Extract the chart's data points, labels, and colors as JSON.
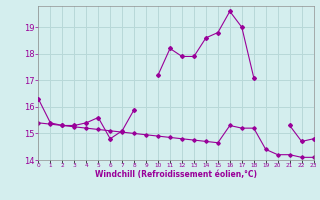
{
  "title": "",
  "xlabel": "Windchill (Refroidissement éolien,°C)",
  "background_color": "#d4eeee",
  "grid_color": "#b8d8d8",
  "line_color": "#990099",
  "x_hours": [
    0,
    1,
    2,
    3,
    4,
    5,
    6,
    7,
    8,
    9,
    10,
    11,
    12,
    13,
    14,
    15,
    16,
    17,
    18,
    19,
    20,
    21,
    22,
    23
  ],
  "y_main": [
    16.3,
    15.4,
    15.3,
    15.3,
    15.4,
    15.6,
    14.8,
    15.1,
    15.9,
    null,
    17.2,
    18.2,
    17.9,
    17.9,
    18.6,
    18.8,
    19.6,
    19.0,
    17.1,
    null,
    null,
    15.3,
    14.7,
    14.8
  ],
  "y_secondary": [
    15.4,
    15.35,
    15.3,
    15.25,
    15.2,
    15.15,
    15.1,
    15.05,
    15.0,
    14.95,
    14.9,
    14.85,
    14.8,
    14.75,
    14.7,
    14.65,
    15.3,
    15.2,
    15.2,
    14.4,
    14.2,
    14.2,
    14.1,
    14.1
  ],
  "ylim": [
    14.0,
    19.8
  ],
  "yticks": [
    14,
    15,
    16,
    17,
    18,
    19
  ],
  "xlim": [
    0,
    23
  ]
}
